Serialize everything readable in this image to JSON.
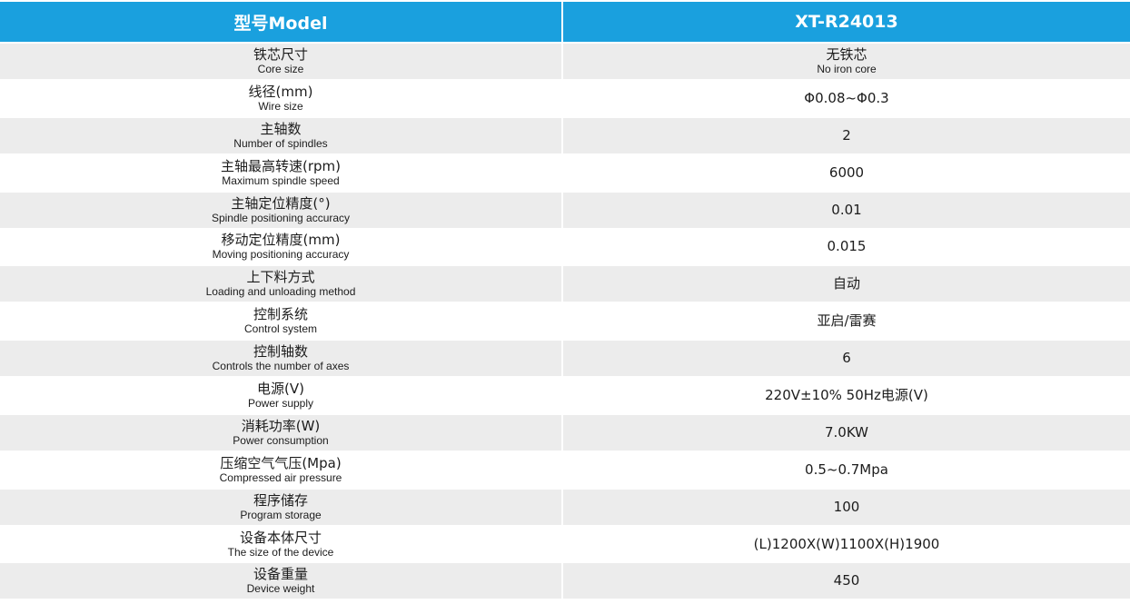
{
  "header": {
    "left_label": "型号Model",
    "right_label": "XT-R24013"
  },
  "colors": {
    "header_background": "#1aa0de",
    "header_text": "#ffffff",
    "row_shaded": "#ececec",
    "row_plain": "#ffffff"
  },
  "specs": [
    {
      "name_cn": "铁芯尺寸",
      "name_en": "Core size",
      "value": "无铁芯",
      "value_en": "No iron core"
    },
    {
      "name_cn": "线径(mm)",
      "name_en": "Wire size",
      "value": "Φ0.08~Φ0.3",
      "value_en": ""
    },
    {
      "name_cn": "主轴数",
      "name_en": "Number of spindles",
      "value": "2",
      "value_en": ""
    },
    {
      "name_cn": "主轴最高转速(rpm)",
      "name_en": "Maximum spindle speed",
      "value": "6000",
      "value_en": ""
    },
    {
      "name_cn": "主轴定位精度(°)",
      "name_en": "Spindle positioning accuracy",
      "value": "0.01",
      "value_en": ""
    },
    {
      "name_cn": "移动定位精度(mm)",
      "name_en": "Moving positioning accuracy",
      "value": "0.015",
      "value_en": ""
    },
    {
      "name_cn": "上下料方式",
      "name_en": "Loading and unloading method",
      "value": "自动",
      "value_en": ""
    },
    {
      "name_cn": "控制系统",
      "name_en": "Control system",
      "value": "亚启/雷赛",
      "value_en": ""
    },
    {
      "name_cn": "控制轴数",
      "name_en": "Controls the number of axes",
      "value": "6",
      "value_en": ""
    },
    {
      "name_cn": "电源(V)",
      "name_en": "Power supply",
      "value": "220V±10% 50Hz电源(V)",
      "value_en": ""
    },
    {
      "name_cn": "消耗功率(W)",
      "name_en": "Power consumption",
      "value": "7.0KW",
      "value_en": ""
    },
    {
      "name_cn": "压缩空气气压(Mpa)",
      "name_en": "Compressed air pressure",
      "value": "0.5~0.7Mpa",
      "value_en": ""
    },
    {
      "name_cn": "程序储存",
      "name_en": "Program storage",
      "value": "100",
      "value_en": ""
    },
    {
      "name_cn": "设备本体尺寸",
      "name_en": "The size of the device",
      "value": "(L)1200X(W)1100X(H)1900",
      "value_en": ""
    },
    {
      "name_cn": "设备重量",
      "name_en": "Device weight",
      "value": "450",
      "value_en": ""
    }
  ]
}
